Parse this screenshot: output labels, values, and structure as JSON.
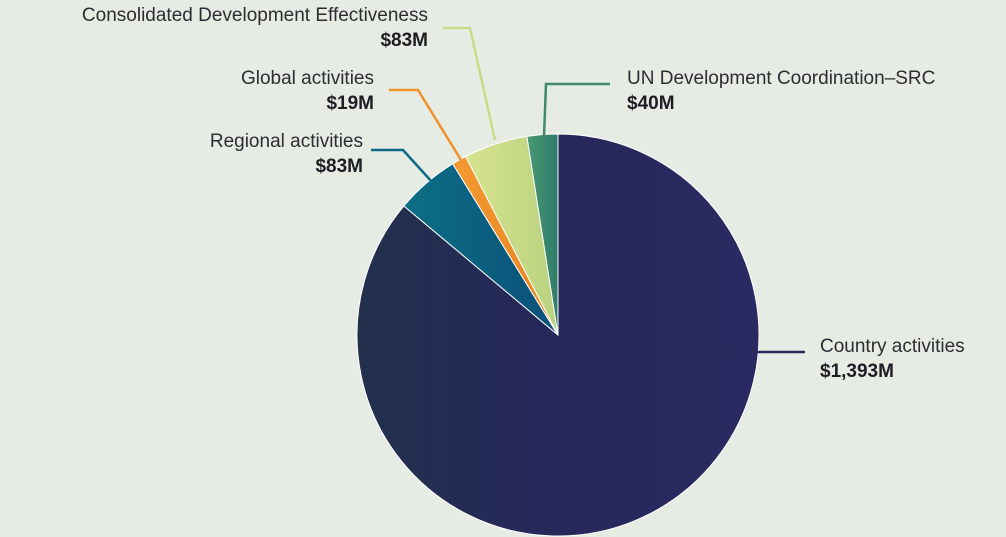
{
  "chart_data": {
    "type": "pie",
    "slices": [
      {
        "label": "Country activities",
        "value_label": "$1,393M",
        "value": 1393,
        "color": "#27295b"
      },
      {
        "label": "Regional activities",
        "value_label": "$83M",
        "value": 83,
        "color": "#0f6a86"
      },
      {
        "label": "Global activities",
        "value_label": "$19M",
        "value": 19,
        "color": "#f0922c"
      },
      {
        "label": "Consolidated Development Effectiveness",
        "value_label": "$83M",
        "value": 83,
        "color": "#c9db87"
      },
      {
        "label": "UN Development Coordination–SRC",
        "value_label": "$40M",
        "value": 40,
        "color": "#3f8a6e"
      }
    ]
  }
}
